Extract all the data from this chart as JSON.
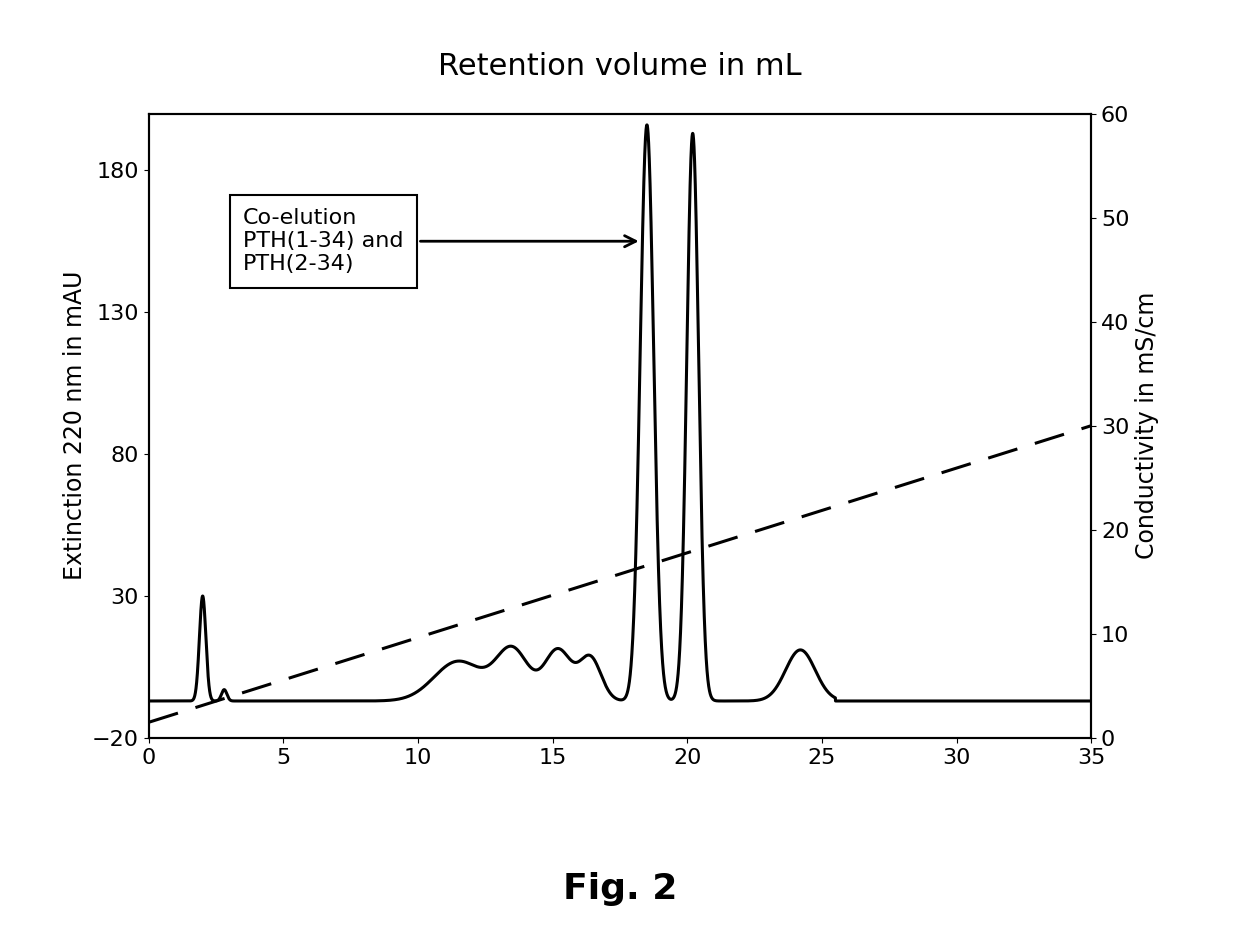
{
  "title": "Retention volume in mL",
  "ylabel_left": "Extinction 220 nm in mAU",
  "ylabel_right": "Conductivity in mS/cm",
  "xlim": [
    0,
    35
  ],
  "ylim_left": [
    -20,
    200
  ],
  "ylim_right": [
    0,
    60
  ],
  "yticks_left": [
    -20,
    30,
    80,
    130,
    180
  ],
  "yticks_right": [
    0,
    10,
    20,
    30,
    40,
    50,
    60
  ],
  "xticks": [
    0,
    5,
    10,
    15,
    20,
    25,
    30,
    35
  ],
  "annotation_text": "Co-elution\nPTH(1-34) and\nPTH(2-34)",
  "fig_caption": "Fig. 2",
  "background_color": "#ffffff",
  "line_color": "#000000",
  "title_fontsize": 22,
  "label_fontsize": 17,
  "tick_fontsize": 16,
  "caption_fontsize": 26,
  "annot_fontsize": 16,
  "conductivity_start": 1.5,
  "conductivity_end": 30.0
}
